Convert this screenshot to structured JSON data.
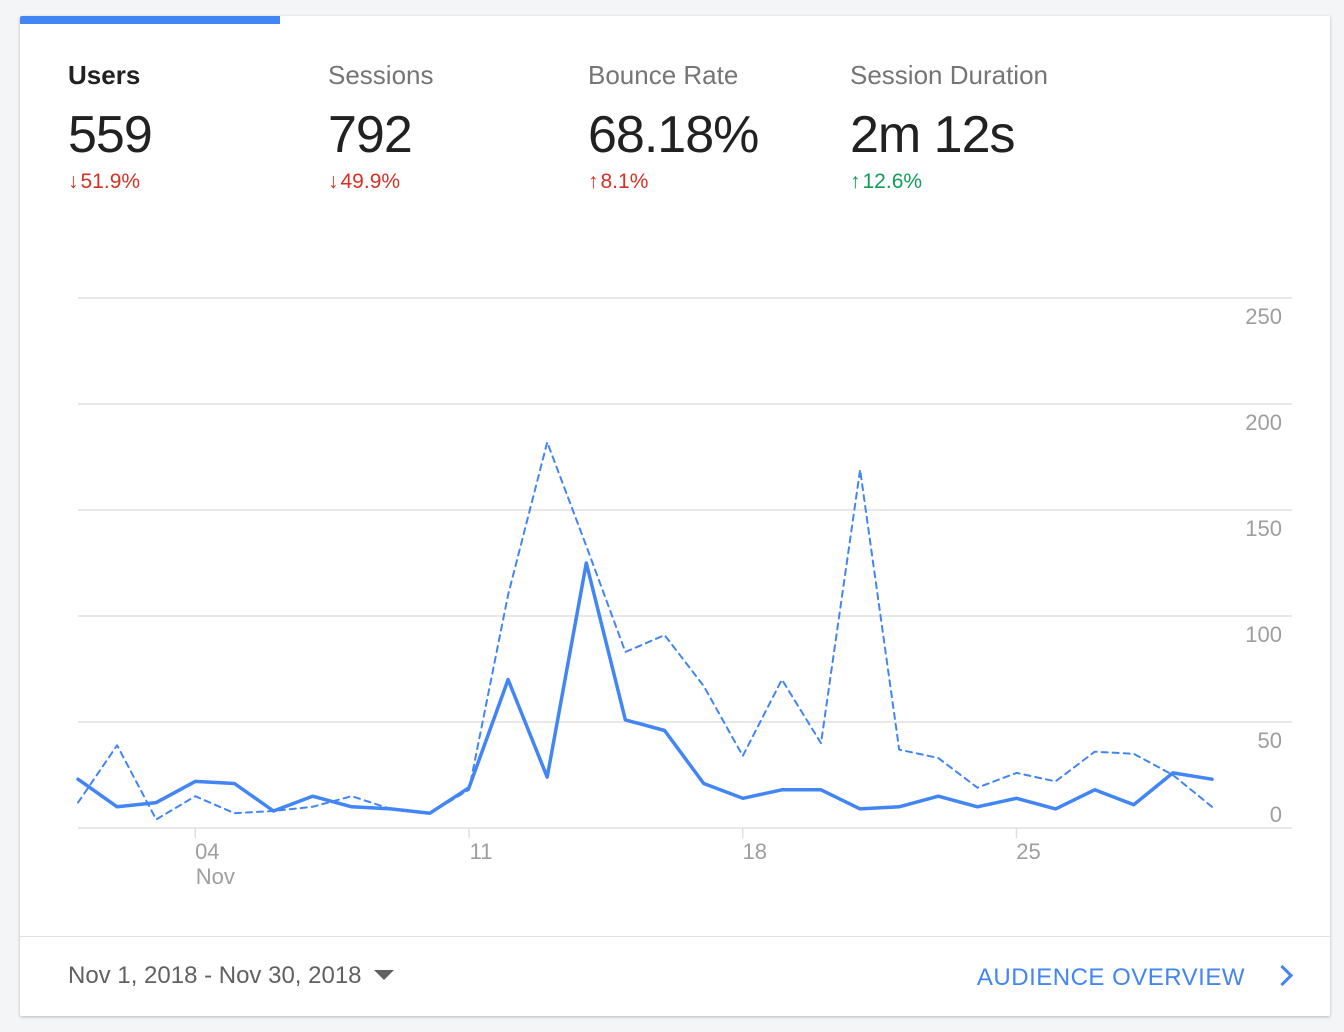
{
  "metrics": [
    {
      "label": "Users",
      "value": "559",
      "change": "51.9%",
      "direction": "down",
      "color": "#d93025"
    },
    {
      "label": "Sessions",
      "value": "792",
      "change": "49.9%",
      "direction": "down",
      "color": "#d93025"
    },
    {
      "label": "Bounce Rate",
      "value": "68.18%",
      "change": "8.1%",
      "direction": "up",
      "color": "#d93025"
    },
    {
      "label": "Session Duration",
      "value": "2m 12s",
      "change": "12.6%",
      "direction": "up",
      "color": "#0f9d58"
    }
  ],
  "arrows": {
    "down": "↓",
    "up": "↑"
  },
  "colors": {
    "accent": "#4285f4",
    "negative": "#d93025",
    "positive": "#0f9d58",
    "grid": "#e0e0e0",
    "axis_text": "#9e9e9e"
  },
  "chart_data": {
    "type": "line",
    "x": [
      1,
      2,
      3,
      4,
      5,
      6,
      7,
      8,
      9,
      10,
      11,
      12,
      13,
      14,
      15,
      16,
      17,
      18,
      19,
      20,
      21,
      22,
      23,
      24,
      25,
      26,
      27,
      28,
      29,
      30
    ],
    "x_ticks": [
      {
        "x": 4,
        "label": "04",
        "sublabel": "Nov"
      },
      {
        "x": 11,
        "label": "11"
      },
      {
        "x": 18,
        "label": "18"
      },
      {
        "x": 25,
        "label": "25"
      }
    ],
    "y_ticks": [
      0,
      50,
      100,
      150,
      200,
      250
    ],
    "ylim": [
      0,
      250
    ],
    "grid": true,
    "series": [
      {
        "style": "solid",
        "color": "#4285f4",
        "values": [
          23,
          10,
          12,
          22,
          21,
          8,
          15,
          10,
          9,
          7,
          19,
          70,
          24,
          125,
          51,
          46,
          21,
          14,
          18,
          18,
          9,
          10,
          15,
          10,
          14,
          9,
          18,
          11,
          26,
          23
        ]
      },
      {
        "style": "dashed",
        "color": "#4285f4",
        "values": [
          12,
          39,
          4,
          15,
          7,
          8,
          10,
          15,
          9,
          7,
          18,
          110,
          182,
          133,
          83,
          91,
          67,
          34,
          70,
          40,
          169,
          37,
          33,
          19,
          26,
          22,
          36,
          35,
          25,
          10
        ]
      }
    ]
  },
  "footer": {
    "date_range": "Nov 1, 2018 - Nov 30, 2018",
    "link_label": "AUDIENCE OVERVIEW"
  }
}
